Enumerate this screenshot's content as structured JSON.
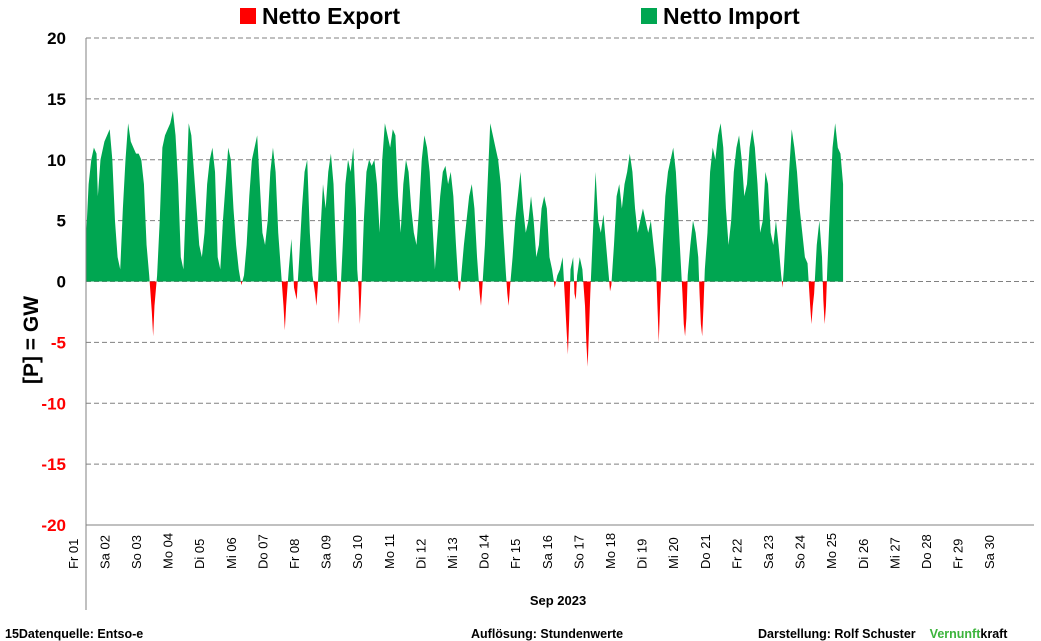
{
  "chart_data": {
    "type": "area",
    "legend": [
      {
        "label": "Netto Export",
        "color": "#ff0000"
      },
      {
        "label": "Netto Import",
        "color": "#00a651"
      }
    ],
    "ylabel": "[P] = GW",
    "xlabel": "Sep 2023",
    "ylim": [
      -20,
      20
    ],
    "yticks": [
      20,
      15,
      10,
      5,
      0,
      -5,
      -10,
      -15,
      -20
    ],
    "negative_tick_color": "#ff0000",
    "grid": "horizontal dashed",
    "legend_position": "top",
    "day_labels": [
      "Fr 01",
      "Sa 02",
      "So 03",
      "Mo 04",
      "Di 05",
      "Mi 06",
      "Do 07",
      "Fr 08",
      "Sa 09",
      "So 10",
      "Mo 11",
      "Di 12",
      "Mi 13",
      "Do 14",
      "Fr 15",
      "Sa 16",
      "So 17",
      "Mo 18",
      "Di 19",
      "Mi 20",
      "Do 21",
      "Fr 22",
      "Sa 23",
      "So 24",
      "Mo 25",
      "Di 26",
      "Mi 27",
      "Do 28",
      "Fr 29",
      "Sa 30"
    ],
    "x_unit": "hours since Sep 01 00:00",
    "points": [
      [
        0,
        3.5
      ],
      [
        2,
        8
      ],
      [
        4,
        10
      ],
      [
        6,
        11
      ],
      [
        8,
        10.5
      ],
      [
        9,
        7
      ],
      [
        11,
        10
      ],
      [
        14,
        11.5
      ],
      [
        16,
        12
      ],
      [
        18,
        12.5
      ],
      [
        20,
        10
      ],
      [
        22,
        5
      ],
      [
        24,
        2
      ],
      [
        26,
        1
      ],
      [
        28,
        6
      ],
      [
        30,
        10
      ],
      [
        32,
        13
      ],
      [
        34,
        11.5
      ],
      [
        36,
        11
      ],
      [
        38,
        10.5
      ],
      [
        40,
        10.5
      ],
      [
        42,
        10
      ],
      [
        44,
        8
      ],
      [
        46,
        3
      ],
      [
        48,
        0.5
      ],
      [
        50,
        -2.5
      ],
      [
        51,
        -4.5
      ],
      [
        52,
        -2
      ],
      [
        54,
        0.5
      ],
      [
        56,
        5
      ],
      [
        58,
        11
      ],
      [
        60,
        12
      ],
      [
        62,
        12.5
      ],
      [
        64,
        13
      ],
      [
        66,
        14
      ],
      [
        68,
        12
      ],
      [
        70,
        8
      ],
      [
        72,
        2
      ],
      [
        74,
        1
      ],
      [
        76,
        7
      ],
      [
        78,
        13
      ],
      [
        80,
        12
      ],
      [
        82,
        9
      ],
      [
        84,
        6
      ],
      [
        86,
        3
      ],
      [
        88,
        2
      ],
      [
        90,
        4
      ],
      [
        92,
        8
      ],
      [
        94,
        10
      ],
      [
        96,
        11
      ],
      [
        98,
        9
      ],
      [
        100,
        2
      ],
      [
        102,
        1
      ],
      [
        104,
        5
      ],
      [
        106,
        8
      ],
      [
        108,
        11
      ],
      [
        110,
        10
      ],
      [
        112,
        6
      ],
      [
        114,
        3
      ],
      [
        116,
        1
      ],
      [
        118,
        -0.3
      ],
      [
        120,
        0.5
      ],
      [
        122,
        3
      ],
      [
        124,
        7
      ],
      [
        126,
        10
      ],
      [
        128,
        11
      ],
      [
        130,
        12
      ],
      [
        132,
        8
      ],
      [
        134,
        4
      ],
      [
        136,
        3
      ],
      [
        138,
        5
      ],
      [
        140,
        9
      ],
      [
        142,
        11
      ],
      [
        144,
        9
      ],
      [
        146,
        4
      ],
      [
        148,
        1
      ],
      [
        150,
        -2
      ],
      [
        151,
        -4
      ],
      [
        152,
        -2
      ],
      [
        154,
        1
      ],
      [
        156,
        3.5
      ],
      [
        158,
        -0.5
      ],
      [
        160,
        -1.5
      ],
      [
        162,
        2
      ],
      [
        164,
        6
      ],
      [
        166,
        9
      ],
      [
        168,
        10
      ],
      [
        170,
        4
      ],
      [
        172,
        0.5
      ],
      [
        174,
        -1
      ],
      [
        175,
        -2
      ],
      [
        176,
        -0.5
      ],
      [
        178,
        4
      ],
      [
        180,
        8
      ],
      [
        182,
        6
      ],
      [
        184,
        9
      ],
      [
        186,
        10.5
      ],
      [
        188,
        8
      ],
      [
        190,
        2
      ],
      [
        191,
        -0.5
      ],
      [
        192,
        -3.5
      ],
      [
        193,
        -1.5
      ],
      [
        195,
        3
      ],
      [
        197,
        8
      ],
      [
        199,
        10
      ],
      [
        201,
        9
      ],
      [
        203,
        11
      ],
      [
        205,
        6
      ],
      [
        206,
        1
      ],
      [
        207,
        -0.5
      ],
      [
        208,
        -3.5
      ],
      [
        209,
        -1
      ],
      [
        211,
        5
      ],
      [
        213,
        9
      ],
      [
        215,
        10
      ],
      [
        217,
        9.5
      ],
      [
        219,
        10
      ],
      [
        221,
        8
      ],
      [
        223,
        4
      ],
      [
        225,
        10
      ],
      [
        227,
        13
      ],
      [
        229,
        12
      ],
      [
        231,
        11
      ],
      [
        233,
        12.5
      ],
      [
        235,
        12
      ],
      [
        237,
        7
      ],
      [
        239,
        4
      ],
      [
        241,
        8
      ],
      [
        243,
        10
      ],
      [
        245,
        9
      ],
      [
        247,
        6
      ],
      [
        249,
        4
      ],
      [
        251,
        3
      ],
      [
        253,
        6
      ],
      [
        255,
        10
      ],
      [
        257,
        12
      ],
      [
        259,
        11
      ],
      [
        261,
        9
      ],
      [
        263,
        5
      ],
      [
        265,
        1
      ],
      [
        267,
        4
      ],
      [
        269,
        7
      ],
      [
        271,
        9
      ],
      [
        273,
        9.5
      ],
      [
        275,
        8
      ],
      [
        277,
        9
      ],
      [
        279,
        7
      ],
      [
        281,
        3
      ],
      [
        283,
        -0.5
      ],
      [
        284,
        -0.8
      ],
      [
        285,
        0.5
      ],
      [
        287,
        3
      ],
      [
        289,
        5
      ],
      [
        291,
        7
      ],
      [
        293,
        8
      ],
      [
        295,
        6
      ],
      [
        297,
        2
      ],
      [
        299,
        -1
      ],
      [
        300,
        -2
      ],
      [
        301,
        -0.5
      ],
      [
        303,
        3
      ],
      [
        305,
        8
      ],
      [
        307,
        13
      ],
      [
        309,
        12
      ],
      [
        311,
        11
      ],
      [
        313,
        10
      ],
      [
        315,
        8
      ],
      [
        317,
        4
      ],
      [
        319,
        0.5
      ],
      [
        320,
        -1
      ],
      [
        321,
        -2
      ],
      [
        322,
        -0.5
      ],
      [
        324,
        2
      ],
      [
        326,
        5
      ],
      [
        328,
        7
      ],
      [
        330,
        9
      ],
      [
        332,
        6
      ],
      [
        334,
        4
      ],
      [
        336,
        5
      ],
      [
        338,
        7
      ],
      [
        340,
        5
      ],
      [
        342,
        2
      ],
      [
        344,
        3
      ],
      [
        346,
        6
      ],
      [
        348,
        7
      ],
      [
        350,
        6
      ],
      [
        352,
        2
      ],
      [
        354,
        1
      ],
      [
        356,
        -0.5
      ],
      [
        358,
        0.5
      ],
      [
        360,
        1
      ],
      [
        362,
        2
      ],
      [
        364,
        -2
      ],
      [
        365,
        -4
      ],
      [
        366,
        -6
      ],
      [
        367,
        -3
      ],
      [
        368,
        1
      ],
      [
        370,
        2
      ],
      [
        371,
        -1
      ],
      [
        372,
        -1.5
      ],
      [
        373,
        0.5
      ],
      [
        375,
        2
      ],
      [
        377,
        1
      ],
      [
        379,
        -2
      ],
      [
        380,
        -5
      ],
      [
        381,
        -7
      ],
      [
        382,
        -4
      ],
      [
        383,
        -1
      ],
      [
        385,
        4
      ],
      [
        387,
        9
      ],
      [
        389,
        5
      ],
      [
        391,
        4
      ],
      [
        393,
        5.5
      ],
      [
        395,
        3
      ],
      [
        397,
        0.5
      ],
      [
        398,
        -0.8
      ],
      [
        399,
        -0.3
      ],
      [
        401,
        3
      ],
      [
        403,
        7
      ],
      [
        405,
        8
      ],
      [
        407,
        6
      ],
      [
        409,
        8
      ],
      [
        411,
        9
      ],
      [
        413,
        10.5
      ],
      [
        415,
        9
      ],
      [
        417,
        6
      ],
      [
        419,
        4
      ],
      [
        421,
        5
      ],
      [
        423,
        6
      ],
      [
        425,
        5
      ],
      [
        427,
        4
      ],
      [
        429,
        5
      ],
      [
        431,
        3
      ],
      [
        433,
        1
      ],
      [
        434,
        -2
      ],
      [
        435,
        -5
      ],
      [
        436,
        -2
      ],
      [
        438,
        3
      ],
      [
        440,
        7
      ],
      [
        442,
        9
      ],
      [
        444,
        10
      ],
      [
        446,
        11
      ],
      [
        448,
        9
      ],
      [
        450,
        5
      ],
      [
        452,
        1
      ],
      [
        453,
        -1
      ],
      [
        454,
        -3.5
      ],
      [
        455,
        -4.5
      ],
      [
        456,
        -3
      ],
      [
        457,
        0.5
      ],
      [
        459,
        3
      ],
      [
        461,
        5
      ],
      [
        463,
        4
      ],
      [
        465,
        2
      ],
      [
        466,
        -1
      ],
      [
        467,
        -3.5
      ],
      [
        468,
        -4.5
      ],
      [
        469,
        -2
      ],
      [
        470,
        1
      ],
      [
        472,
        4
      ],
      [
        474,
        9
      ],
      [
        476,
        11
      ],
      [
        478,
        10
      ],
      [
        480,
        12
      ],
      [
        482,
        13
      ],
      [
        484,
        11
      ],
      [
        486,
        6
      ],
      [
        488,
        3
      ],
      [
        490,
        5
      ],
      [
        492,
        9
      ],
      [
        494,
        11
      ],
      [
        496,
        12
      ],
      [
        498,
        10
      ],
      [
        500,
        7
      ],
      [
        502,
        8
      ],
      [
        504,
        11
      ],
      [
        506,
        12.5
      ],
      [
        508,
        11
      ],
      [
        510,
        8
      ],
      [
        512,
        4
      ],
      [
        514,
        5
      ],
      [
        516,
        9
      ],
      [
        518,
        8
      ],
      [
        520,
        4
      ],
      [
        522,
        3
      ],
      [
        524,
        5
      ],
      [
        526,
        3
      ],
      [
        528,
        0.5
      ],
      [
        529,
        -0.5
      ],
      [
        530,
        1
      ],
      [
        532,
        5
      ],
      [
        534,
        9
      ],
      [
        536,
        12.5
      ],
      [
        538,
        11
      ],
      [
        540,
        9
      ],
      [
        542,
        6
      ],
      [
        544,
        4
      ],
      [
        546,
        2
      ],
      [
        548,
        1.5
      ],
      [
        550,
        -2
      ],
      [
        551,
        -3.5
      ],
      [
        552,
        -2
      ],
      [
        553,
        -1
      ],
      [
        555,
        3
      ],
      [
        557,
        5
      ],
      [
        559,
        2
      ],
      [
        560,
        -1.5
      ],
      [
        561,
        -3.5
      ],
      [
        562,
        -2
      ],
      [
        563,
        1
      ],
      [
        565,
        6
      ],
      [
        567,
        11
      ],
      [
        569,
        13
      ],
      [
        571,
        11
      ],
      [
        573,
        10.5
      ],
      [
        575,
        8
      ]
    ],
    "footer": {
      "left": "15Datenquelle: Entso-e",
      "center": "Auflösung: Stundenwerte",
      "right_prefix": "Darstellung:  Rolf Schuster",
      "brand_green": "Vernunft",
      "brand_black": "kraft",
      "brand_color": "#3cb43c"
    }
  }
}
